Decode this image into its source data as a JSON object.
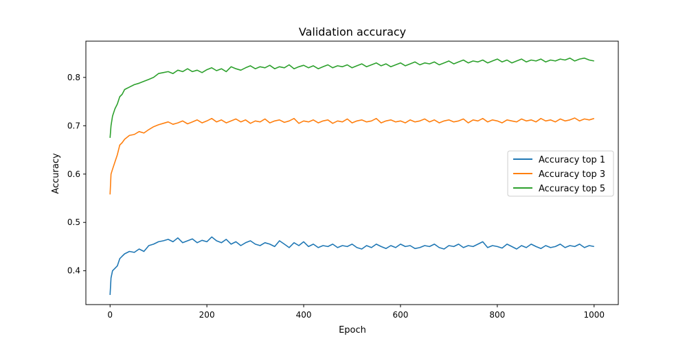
{
  "chart_data": {
    "type": "line",
    "title": "Validation accuracy",
    "xlabel": "Epoch",
    "ylabel": "Accuracy",
    "xlim": [
      -50,
      1050
    ],
    "ylim": [
      0.33,
      0.875
    ],
    "xticks": [
      0,
      200,
      400,
      600,
      800,
      1000
    ],
    "yticks": [
      0.4,
      0.5,
      0.6,
      0.7,
      0.8
    ],
    "xtick_labels": [
      "0",
      "200",
      "400",
      "600",
      "800",
      "1000"
    ],
    "ytick_labels": [
      "0.4",
      "0.5",
      "0.6",
      "0.7",
      "0.8"
    ],
    "grid": false,
    "legend_position": "center-right",
    "series": [
      {
        "name": "Accuracy top 1",
        "color": "#1f77b4",
        "x": [
          0,
          2,
          5,
          10,
          15,
          20,
          25,
          30,
          40,
          50,
          60,
          70,
          80,
          90,
          100,
          110,
          120,
          130,
          140,
          150,
          160,
          170,
          180,
          190,
          200,
          210,
          220,
          230,
          240,
          250,
          260,
          270,
          280,
          290,
          300,
          310,
          320,
          330,
          340,
          350,
          360,
          370,
          380,
          390,
          400,
          410,
          420,
          430,
          440,
          450,
          460,
          470,
          480,
          490,
          500,
          510,
          520,
          530,
          540,
          550,
          560,
          570,
          580,
          590,
          600,
          610,
          620,
          630,
          640,
          650,
          660,
          670,
          680,
          690,
          700,
          710,
          720,
          730,
          740,
          750,
          760,
          770,
          780,
          790,
          800,
          810,
          820,
          830,
          840,
          850,
          860,
          870,
          880,
          890,
          900,
          910,
          920,
          930,
          940,
          950,
          960,
          970,
          980,
          990,
          1000
        ],
        "values": [
          0.35,
          0.385,
          0.4,
          0.405,
          0.41,
          0.425,
          0.43,
          0.435,
          0.44,
          0.438,
          0.445,
          0.44,
          0.452,
          0.455,
          0.46,
          0.462,
          0.465,
          0.46,
          0.468,
          0.458,
          0.462,
          0.466,
          0.458,
          0.463,
          0.46,
          0.47,
          0.462,
          0.458,
          0.465,
          0.455,
          0.46,
          0.452,
          0.458,
          0.462,
          0.455,
          0.452,
          0.458,
          0.455,
          0.45,
          0.462,
          0.455,
          0.448,
          0.458,
          0.452,
          0.46,
          0.45,
          0.455,
          0.448,
          0.452,
          0.45,
          0.455,
          0.448,
          0.452,
          0.45,
          0.455,
          0.448,
          0.445,
          0.452,
          0.448,
          0.455,
          0.45,
          0.446,
          0.452,
          0.448,
          0.455,
          0.45,
          0.452,
          0.446,
          0.448,
          0.452,
          0.45,
          0.455,
          0.448,
          0.445,
          0.452,
          0.45,
          0.455,
          0.448,
          0.452,
          0.45,
          0.455,
          0.46,
          0.448,
          0.452,
          0.45,
          0.447,
          0.455,
          0.45,
          0.445,
          0.452,
          0.448,
          0.455,
          0.45,
          0.446,
          0.452,
          0.448,
          0.45,
          0.455,
          0.448,
          0.452,
          0.45,
          0.455,
          0.448,
          0.452,
          0.45
        ]
      },
      {
        "name": "Accuracy top 3",
        "color": "#ff7f0e",
        "x": [
          0,
          2,
          5,
          10,
          15,
          20,
          25,
          30,
          40,
          50,
          60,
          70,
          80,
          90,
          100,
          110,
          120,
          130,
          140,
          150,
          160,
          170,
          180,
          190,
          200,
          210,
          220,
          230,
          240,
          250,
          260,
          270,
          280,
          290,
          300,
          310,
          320,
          330,
          340,
          350,
          360,
          370,
          380,
          390,
          400,
          410,
          420,
          430,
          440,
          450,
          460,
          470,
          480,
          490,
          500,
          510,
          520,
          530,
          540,
          550,
          560,
          570,
          580,
          590,
          600,
          610,
          620,
          630,
          640,
          650,
          660,
          670,
          680,
          690,
          700,
          710,
          720,
          730,
          740,
          750,
          760,
          770,
          780,
          790,
          800,
          810,
          820,
          830,
          840,
          850,
          860,
          870,
          880,
          890,
          900,
          910,
          920,
          930,
          940,
          950,
          960,
          970,
          980,
          990,
          1000
        ],
        "values": [
          0.558,
          0.6,
          0.61,
          0.625,
          0.64,
          0.66,
          0.665,
          0.672,
          0.68,
          0.682,
          0.688,
          0.685,
          0.692,
          0.698,
          0.702,
          0.705,
          0.708,
          0.703,
          0.706,
          0.71,
          0.704,
          0.708,
          0.712,
          0.706,
          0.71,
          0.715,
          0.708,
          0.712,
          0.706,
          0.71,
          0.714,
          0.708,
          0.712,
          0.705,
          0.71,
          0.708,
          0.714,
          0.706,
          0.71,
          0.712,
          0.707,
          0.71,
          0.715,
          0.705,
          0.71,
          0.708,
          0.712,
          0.706,
          0.71,
          0.712,
          0.705,
          0.71,
          0.708,
          0.714,
          0.706,
          0.71,
          0.712,
          0.708,
          0.71,
          0.715,
          0.706,
          0.71,
          0.712,
          0.708,
          0.71,
          0.706,
          0.712,
          0.708,
          0.71,
          0.714,
          0.708,
          0.712,
          0.706,
          0.71,
          0.712,
          0.708,
          0.71,
          0.714,
          0.706,
          0.712,
          0.71,
          0.715,
          0.708,
          0.712,
          0.71,
          0.706,
          0.712,
          0.71,
          0.708,
          0.714,
          0.71,
          0.712,
          0.708,
          0.715,
          0.71,
          0.712,
          0.708,
          0.714,
          0.71,
          0.712,
          0.716,
          0.71,
          0.714,
          0.712,
          0.715
        ]
      },
      {
        "name": "Accuracy top 5",
        "color": "#2ca02c",
        "x": [
          0,
          2,
          5,
          10,
          15,
          20,
          25,
          30,
          40,
          50,
          60,
          70,
          80,
          90,
          100,
          110,
          120,
          130,
          140,
          150,
          160,
          170,
          180,
          190,
          200,
          210,
          220,
          230,
          240,
          250,
          260,
          270,
          280,
          290,
          300,
          310,
          320,
          330,
          340,
          350,
          360,
          370,
          380,
          390,
          400,
          410,
          420,
          430,
          440,
          450,
          460,
          470,
          480,
          490,
          500,
          510,
          520,
          530,
          540,
          550,
          560,
          570,
          580,
          590,
          600,
          610,
          620,
          630,
          640,
          650,
          660,
          670,
          680,
          690,
          700,
          710,
          720,
          730,
          740,
          750,
          760,
          770,
          780,
          790,
          800,
          810,
          820,
          830,
          840,
          850,
          860,
          870,
          880,
          890,
          900,
          910,
          920,
          930,
          940,
          950,
          960,
          970,
          980,
          990,
          1000
        ],
        "values": [
          0.675,
          0.7,
          0.72,
          0.735,
          0.745,
          0.76,
          0.765,
          0.775,
          0.78,
          0.785,
          0.788,
          0.792,
          0.796,
          0.8,
          0.808,
          0.81,
          0.812,
          0.808,
          0.815,
          0.812,
          0.818,
          0.812,
          0.815,
          0.81,
          0.816,
          0.82,
          0.814,
          0.818,
          0.812,
          0.822,
          0.818,
          0.815,
          0.82,
          0.824,
          0.818,
          0.822,
          0.82,
          0.825,
          0.818,
          0.822,
          0.82,
          0.826,
          0.818,
          0.822,
          0.825,
          0.82,
          0.824,
          0.818,
          0.822,
          0.826,
          0.82,
          0.824,
          0.822,
          0.826,
          0.82,
          0.824,
          0.828,
          0.822,
          0.826,
          0.83,
          0.824,
          0.828,
          0.822,
          0.826,
          0.83,
          0.824,
          0.828,
          0.832,
          0.826,
          0.83,
          0.828,
          0.832,
          0.826,
          0.83,
          0.834,
          0.828,
          0.832,
          0.836,
          0.83,
          0.834,
          0.832,
          0.836,
          0.83,
          0.834,
          0.838,
          0.832,
          0.836,
          0.83,
          0.834,
          0.838,
          0.832,
          0.836,
          0.834,
          0.838,
          0.832,
          0.836,
          0.834,
          0.838,
          0.836,
          0.84,
          0.834,
          0.838,
          0.84,
          0.836,
          0.834
        ]
      }
    ]
  }
}
